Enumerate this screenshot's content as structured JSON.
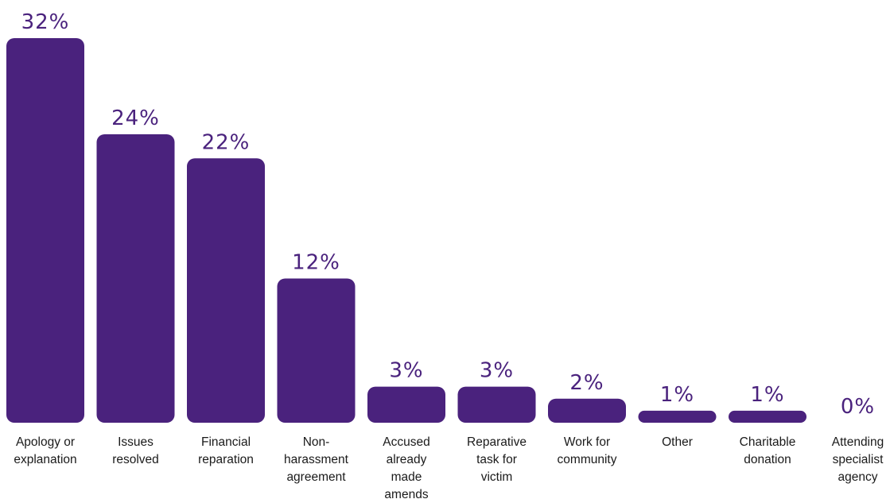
{
  "chart_data": {
    "type": "bar",
    "title": "",
    "xlabel": "",
    "ylabel": "",
    "ylim": [
      0,
      32
    ],
    "grid": false,
    "legend": "none",
    "bar_color": "#4a227d",
    "label_color": "#4a227d",
    "categories": [
      [
        "Apology or",
        "explanation"
      ],
      [
        "Issues",
        "resolved"
      ],
      [
        "Financial",
        "reparation"
      ],
      [
        "Non-",
        "harassment",
        "agreement"
      ],
      [
        "Accused",
        "already",
        "made",
        "amends"
      ],
      [
        "Reparative",
        "task for",
        "victim"
      ],
      [
        "Work for",
        "community"
      ],
      [
        "Other"
      ],
      [
        "Charitable",
        "donation"
      ],
      [
        "Attending",
        "specialist",
        "agency"
      ]
    ],
    "values": [
      32,
      24,
      22,
      12,
      3,
      3,
      2,
      1,
      1,
      0
    ],
    "value_labels": [
      "32%",
      "24%",
      "22%",
      "12%",
      "3%",
      "3%",
      "2%",
      "1%",
      "1%",
      "0%"
    ]
  }
}
